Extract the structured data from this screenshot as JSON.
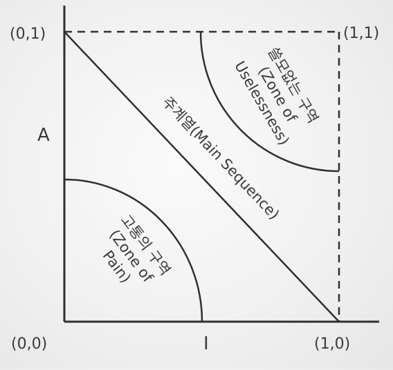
{
  "corners": {
    "origin": "(0,0)",
    "top_left": "(0,1)",
    "top_right": "(1,1)",
    "bottom_right": "(1,0)"
  },
  "axes": {
    "y_label": "A",
    "x_label": "I"
  },
  "main_sequence": {
    "label": "주계열(Main Sequence)"
  },
  "zone_of_uselessness": {
    "lines": [
      "쓸모없는 구역",
      "(Zone of",
      "Uselessness)"
    ]
  },
  "zone_of_pain": {
    "lines": [
      "고통의 구역",
      "(Zone of",
      "Pain)"
    ]
  },
  "colors": {
    "line": "#2f2f2f",
    "text": "#3a3a3a"
  }
}
